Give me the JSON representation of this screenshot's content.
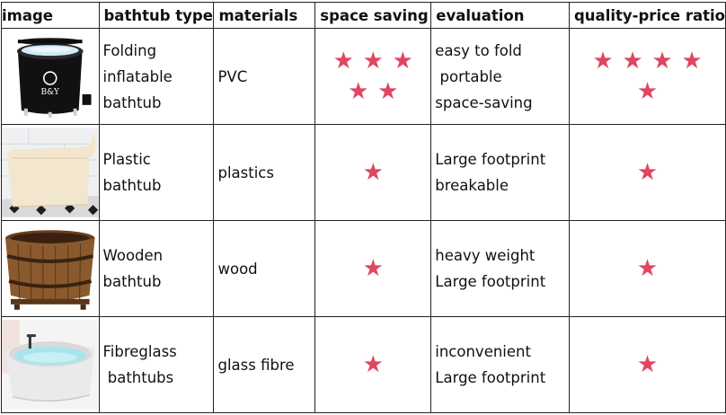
{
  "headers": [
    "image",
    "bathtub type",
    "materials",
    "space saving",
    "evaluation",
    "quality-price ratio"
  ],
  "rows": [
    {
      "type": "Folding\ninflatable\nbathtub",
      "material": "PVC",
      "space_saving_stars": 5,
      "evaluation": "easy to fold\n portable\nspace-saving",
      "quality_price_stars": 5,
      "image_text": "B&Y"
    },
    {
      "type": "Plastic\nbathtub",
      "material": "plastics",
      "space_saving_stars": 1,
      "evaluation": "Large footprint\nbreakable",
      "quality_price_stars": 1
    },
    {
      "type": "Wooden\nbathtub",
      "material": "wood",
      "space_saving_stars": 1,
      "evaluation": "heavy weight\nLarge footprint",
      "quality_price_stars": 1
    },
    {
      "type": "Fibreglass\n bathtubs",
      "material": "glass fibre",
      "space_saving_stars": 1,
      "evaluation": "inconvenient\nLarge footprint",
      "quality_price_stars": 1
    }
  ],
  "colors": {
    "star": "#e04561",
    "border": "#222222"
  },
  "icons": {
    "star": "star-icon"
  }
}
